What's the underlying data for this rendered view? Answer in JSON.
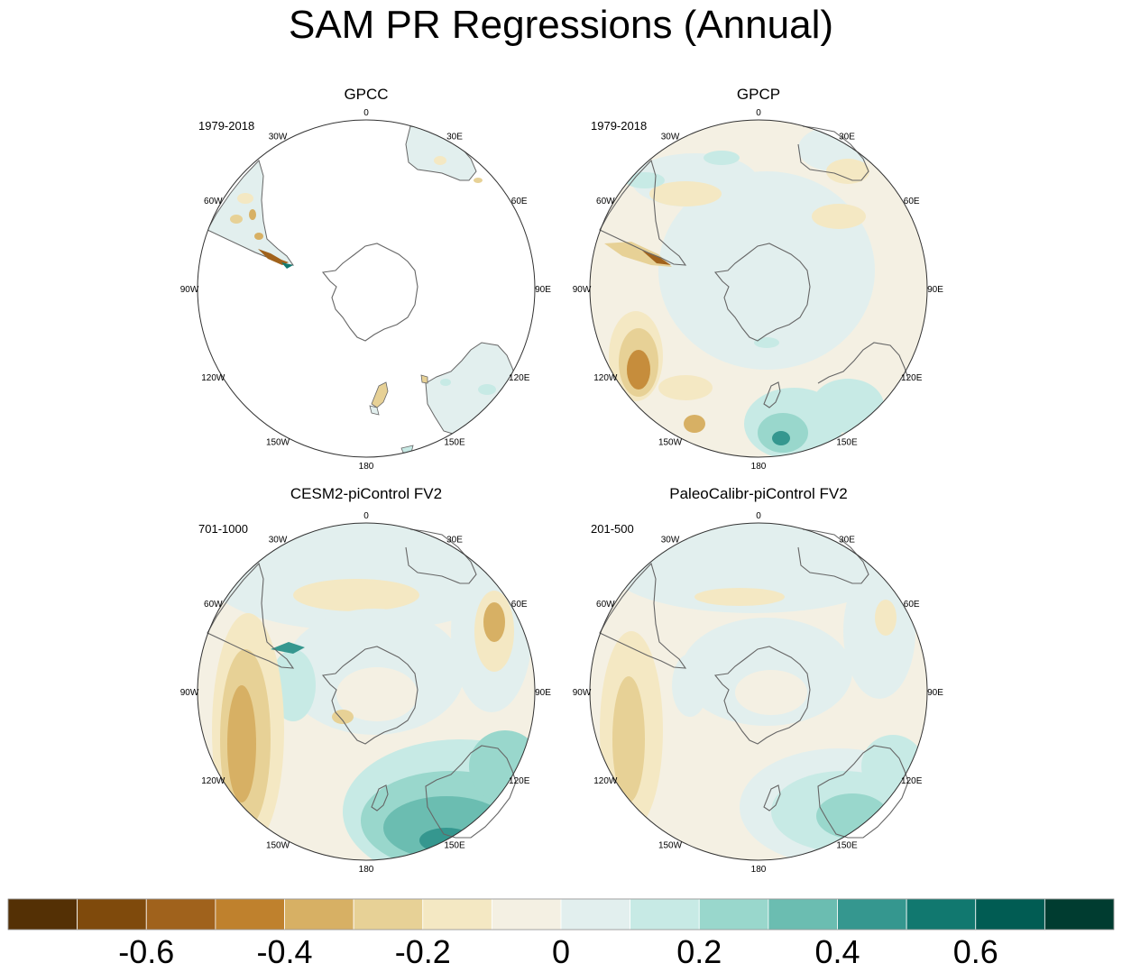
{
  "title": "SAM PR Regressions (Annual)",
  "panels": [
    {
      "name": "GPCC",
      "period": "1979-2018"
    },
    {
      "name": "GPCP",
      "period": "1979-2018"
    },
    {
      "name": "CESM2-piControl FV2",
      "period": "701-1000"
    },
    {
      "name": "PaleoCalibr-piControl FV2",
      "period": "201-500"
    }
  ],
  "longitude_labels": [
    "0",
    "30E",
    "60E",
    "90E",
    "120E",
    "150E",
    "180",
    "150W",
    "120W",
    "90W",
    "60W",
    "30W"
  ],
  "colorbar": {
    "colors": [
      "#543005",
      "#7f4a0c",
      "#a0621c",
      "#bf812d",
      "#d7b064",
      "#e7d196",
      "#f4e8c3",
      "#f4f0e3",
      "#e2efee",
      "#c7eae5",
      "#99d7cc",
      "#6bbdb1",
      "#35978f",
      "#11786f",
      "#015c53",
      "#003c30"
    ],
    "tick_labels": [
      "-0.6",
      "-0.4",
      "-0.2",
      "0",
      "0.2",
      "0.4",
      "0.6"
    ]
  }
}
